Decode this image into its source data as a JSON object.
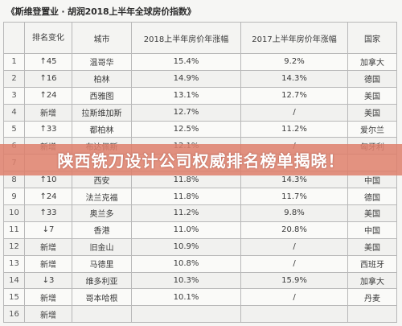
{
  "document": {
    "title": "《斯维登置业 · 胡润2018上半年全球房价指数》"
  },
  "table": {
    "headers": [
      "",
      "排名变化",
      "城市",
      "2018上半年房价年涨幅",
      "2017上半年房价年涨幅",
      "国家"
    ],
    "rows": [
      [
        "1",
        "↑45",
        "温哥华",
        "15.4%",
        "9.2%",
        "加拿大"
      ],
      [
        "2",
        "↑16",
        "柏林",
        "14.9%",
        "14.3%",
        "德国"
      ],
      [
        "3",
        "↑24",
        "西雅图",
        "13.1%",
        "12.7%",
        "美国"
      ],
      [
        "4",
        "新增",
        "拉斯维加斯",
        "12.7%",
        "/",
        "美国"
      ],
      [
        "5",
        "↑33",
        "都柏林",
        "12.5%",
        "11.2%",
        "爱尔兰"
      ],
      [
        "6",
        "新增",
        "布达佩斯",
        "12.1%",
        "/",
        "匈牙利"
      ],
      [
        "7",
        "",
        "",
        "",
        "",
        ""
      ],
      [
        "8",
        "↑10",
        "西安",
        "11.8%",
        "14.3%",
        "中国"
      ],
      [
        "9",
        "↑24",
        "法兰克福",
        "11.8%",
        "11.7%",
        "德国"
      ],
      [
        "10",
        "↑33",
        "奥兰多",
        "11.2%",
        "9.8%",
        "美国"
      ],
      [
        "11",
        "↓7",
        "香港",
        "11.0%",
        "20.8%",
        "中国"
      ],
      [
        "12",
        "新增",
        "旧金山",
        "10.9%",
        "/",
        "美国"
      ],
      [
        "13",
        "新增",
        "马德里",
        "10.8%",
        "/",
        "西班牙"
      ],
      [
        "14",
        "↓3",
        "维多利亚",
        "10.3%",
        "15.9%",
        "加拿大"
      ],
      [
        "15",
        "新增",
        "哥本哈根",
        "10.1%",
        "/",
        "丹麦"
      ],
      [
        "16",
        "新增",
        "",
        "",
        "",
        ""
      ]
    ]
  },
  "banner": {
    "text": "陕西铣刀设计公司权威排名榜单揭晓！"
  }
}
